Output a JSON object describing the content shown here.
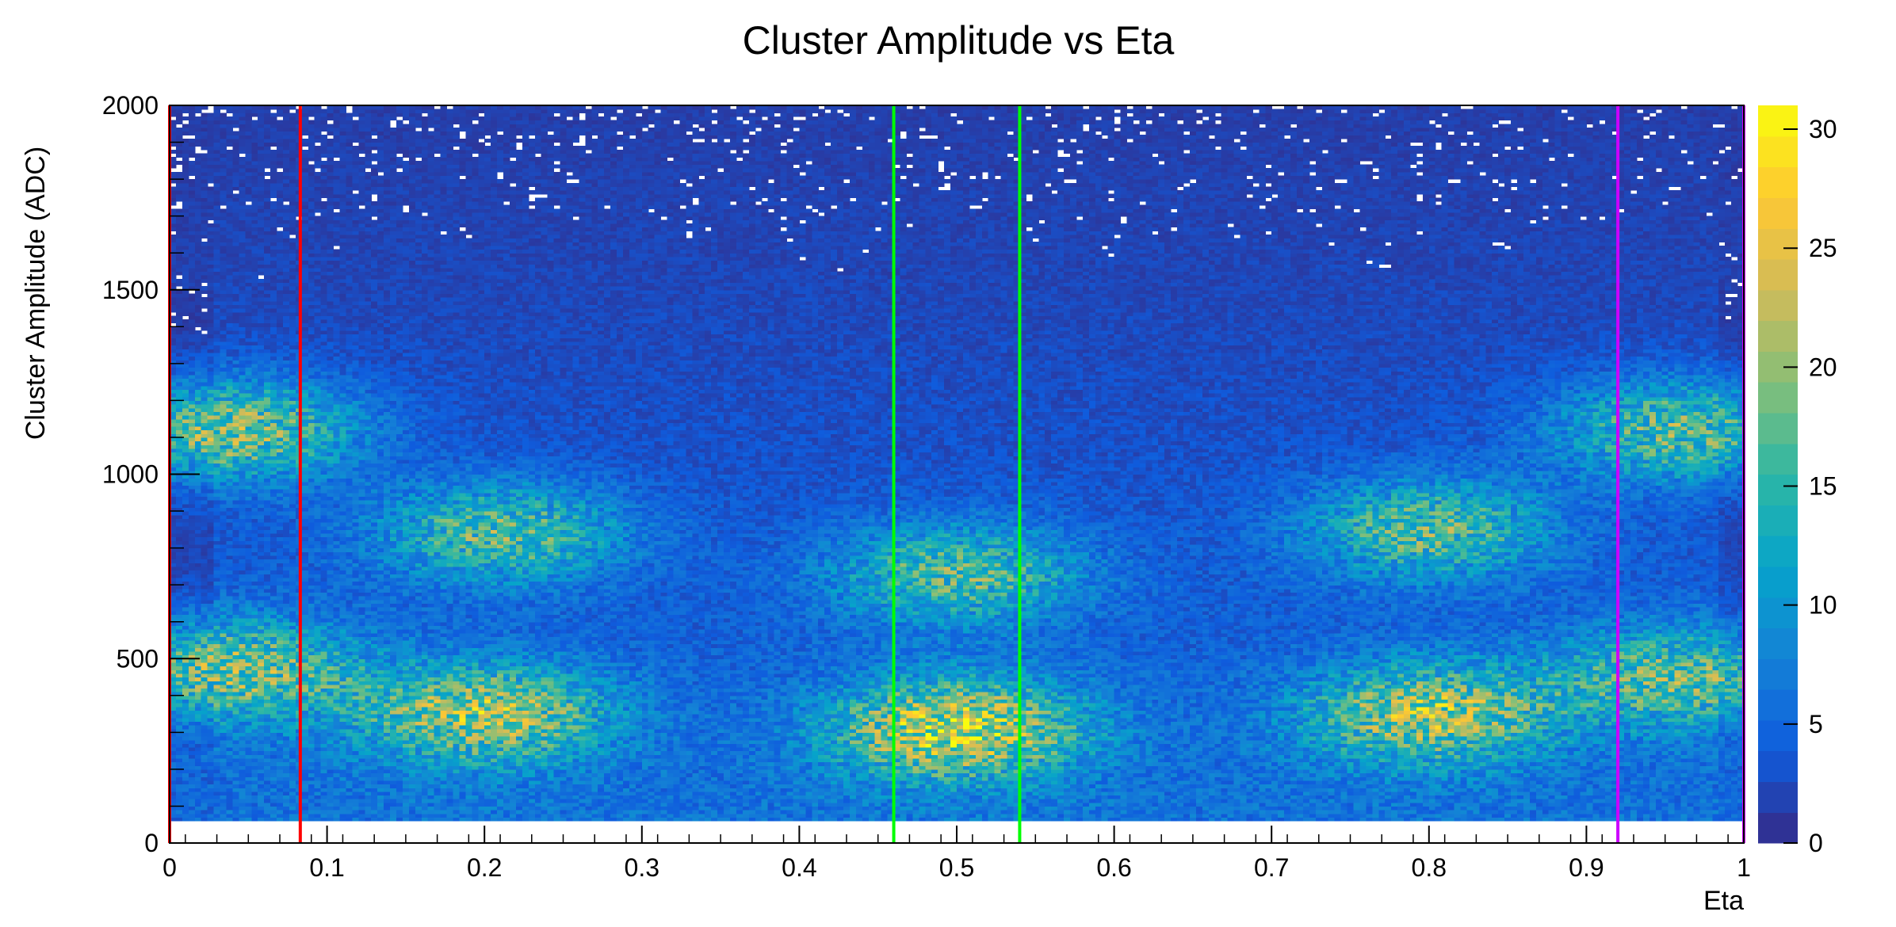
{
  "chart_data": {
    "type": "heatmap",
    "title": "Cluster Amplitude vs Eta",
    "xlabel": "Eta",
    "ylabel": "Cluster Amplitude (ADC)",
    "xlim": [
      0,
      1
    ],
    "ylim": [
      0,
      2000
    ],
    "x_ticks": [
      "0",
      "0.1",
      "0.2",
      "0.3",
      "0.4",
      "0.5",
      "0.6",
      "0.7",
      "0.8",
      "0.9",
      "1"
    ],
    "y_ticks": [
      "0",
      "500",
      "1000",
      "1500",
      "2000"
    ],
    "z_range": [
      0,
      31
    ],
    "z_ticks": [
      "0",
      "5",
      "10",
      "15",
      "20",
      "25",
      "30"
    ],
    "colormap": "parula",
    "color_stops": [
      "#352a87",
      "#0f5cdd",
      "#1481d6",
      "#06a4ca",
      "#2eb7a4",
      "#87bf77",
      "#d1bb59",
      "#fec832",
      "#f9fb0e"
    ],
    "density_peaks": [
      {
        "eta": 0.04,
        "amplitude": 1120,
        "counts": 22
      },
      {
        "eta": 0.04,
        "amplitude": 470,
        "counts": 22
      },
      {
        "eta": 0.21,
        "amplitude": 840,
        "counts": 19
      },
      {
        "eta": 0.2,
        "amplitude": 350,
        "counts": 24
      },
      {
        "eta": 0.5,
        "amplitude": 730,
        "counts": 19
      },
      {
        "eta": 0.5,
        "amplitude": 310,
        "counts": 28
      },
      {
        "eta": 0.8,
        "amplitude": 850,
        "counts": 19
      },
      {
        "eta": 0.8,
        "amplitude": 350,
        "counts": 24
      },
      {
        "eta": 0.96,
        "amplitude": 1120,
        "counts": 20
      },
      {
        "eta": 0.96,
        "amplitude": 450,
        "counts": 20
      }
    ],
    "vertical_lines": [
      {
        "x": 0.0,
        "color": "#ff0000"
      },
      {
        "x": 0.083,
        "color": "#ff0000"
      },
      {
        "x": 0.46,
        "color": "#00ff00"
      },
      {
        "x": 0.54,
        "color": "#00ff00"
      },
      {
        "x": 0.92,
        "color": "#cc00ff"
      },
      {
        "x": 1.0,
        "color": "#cc00ff"
      }
    ],
    "grid": false
  }
}
